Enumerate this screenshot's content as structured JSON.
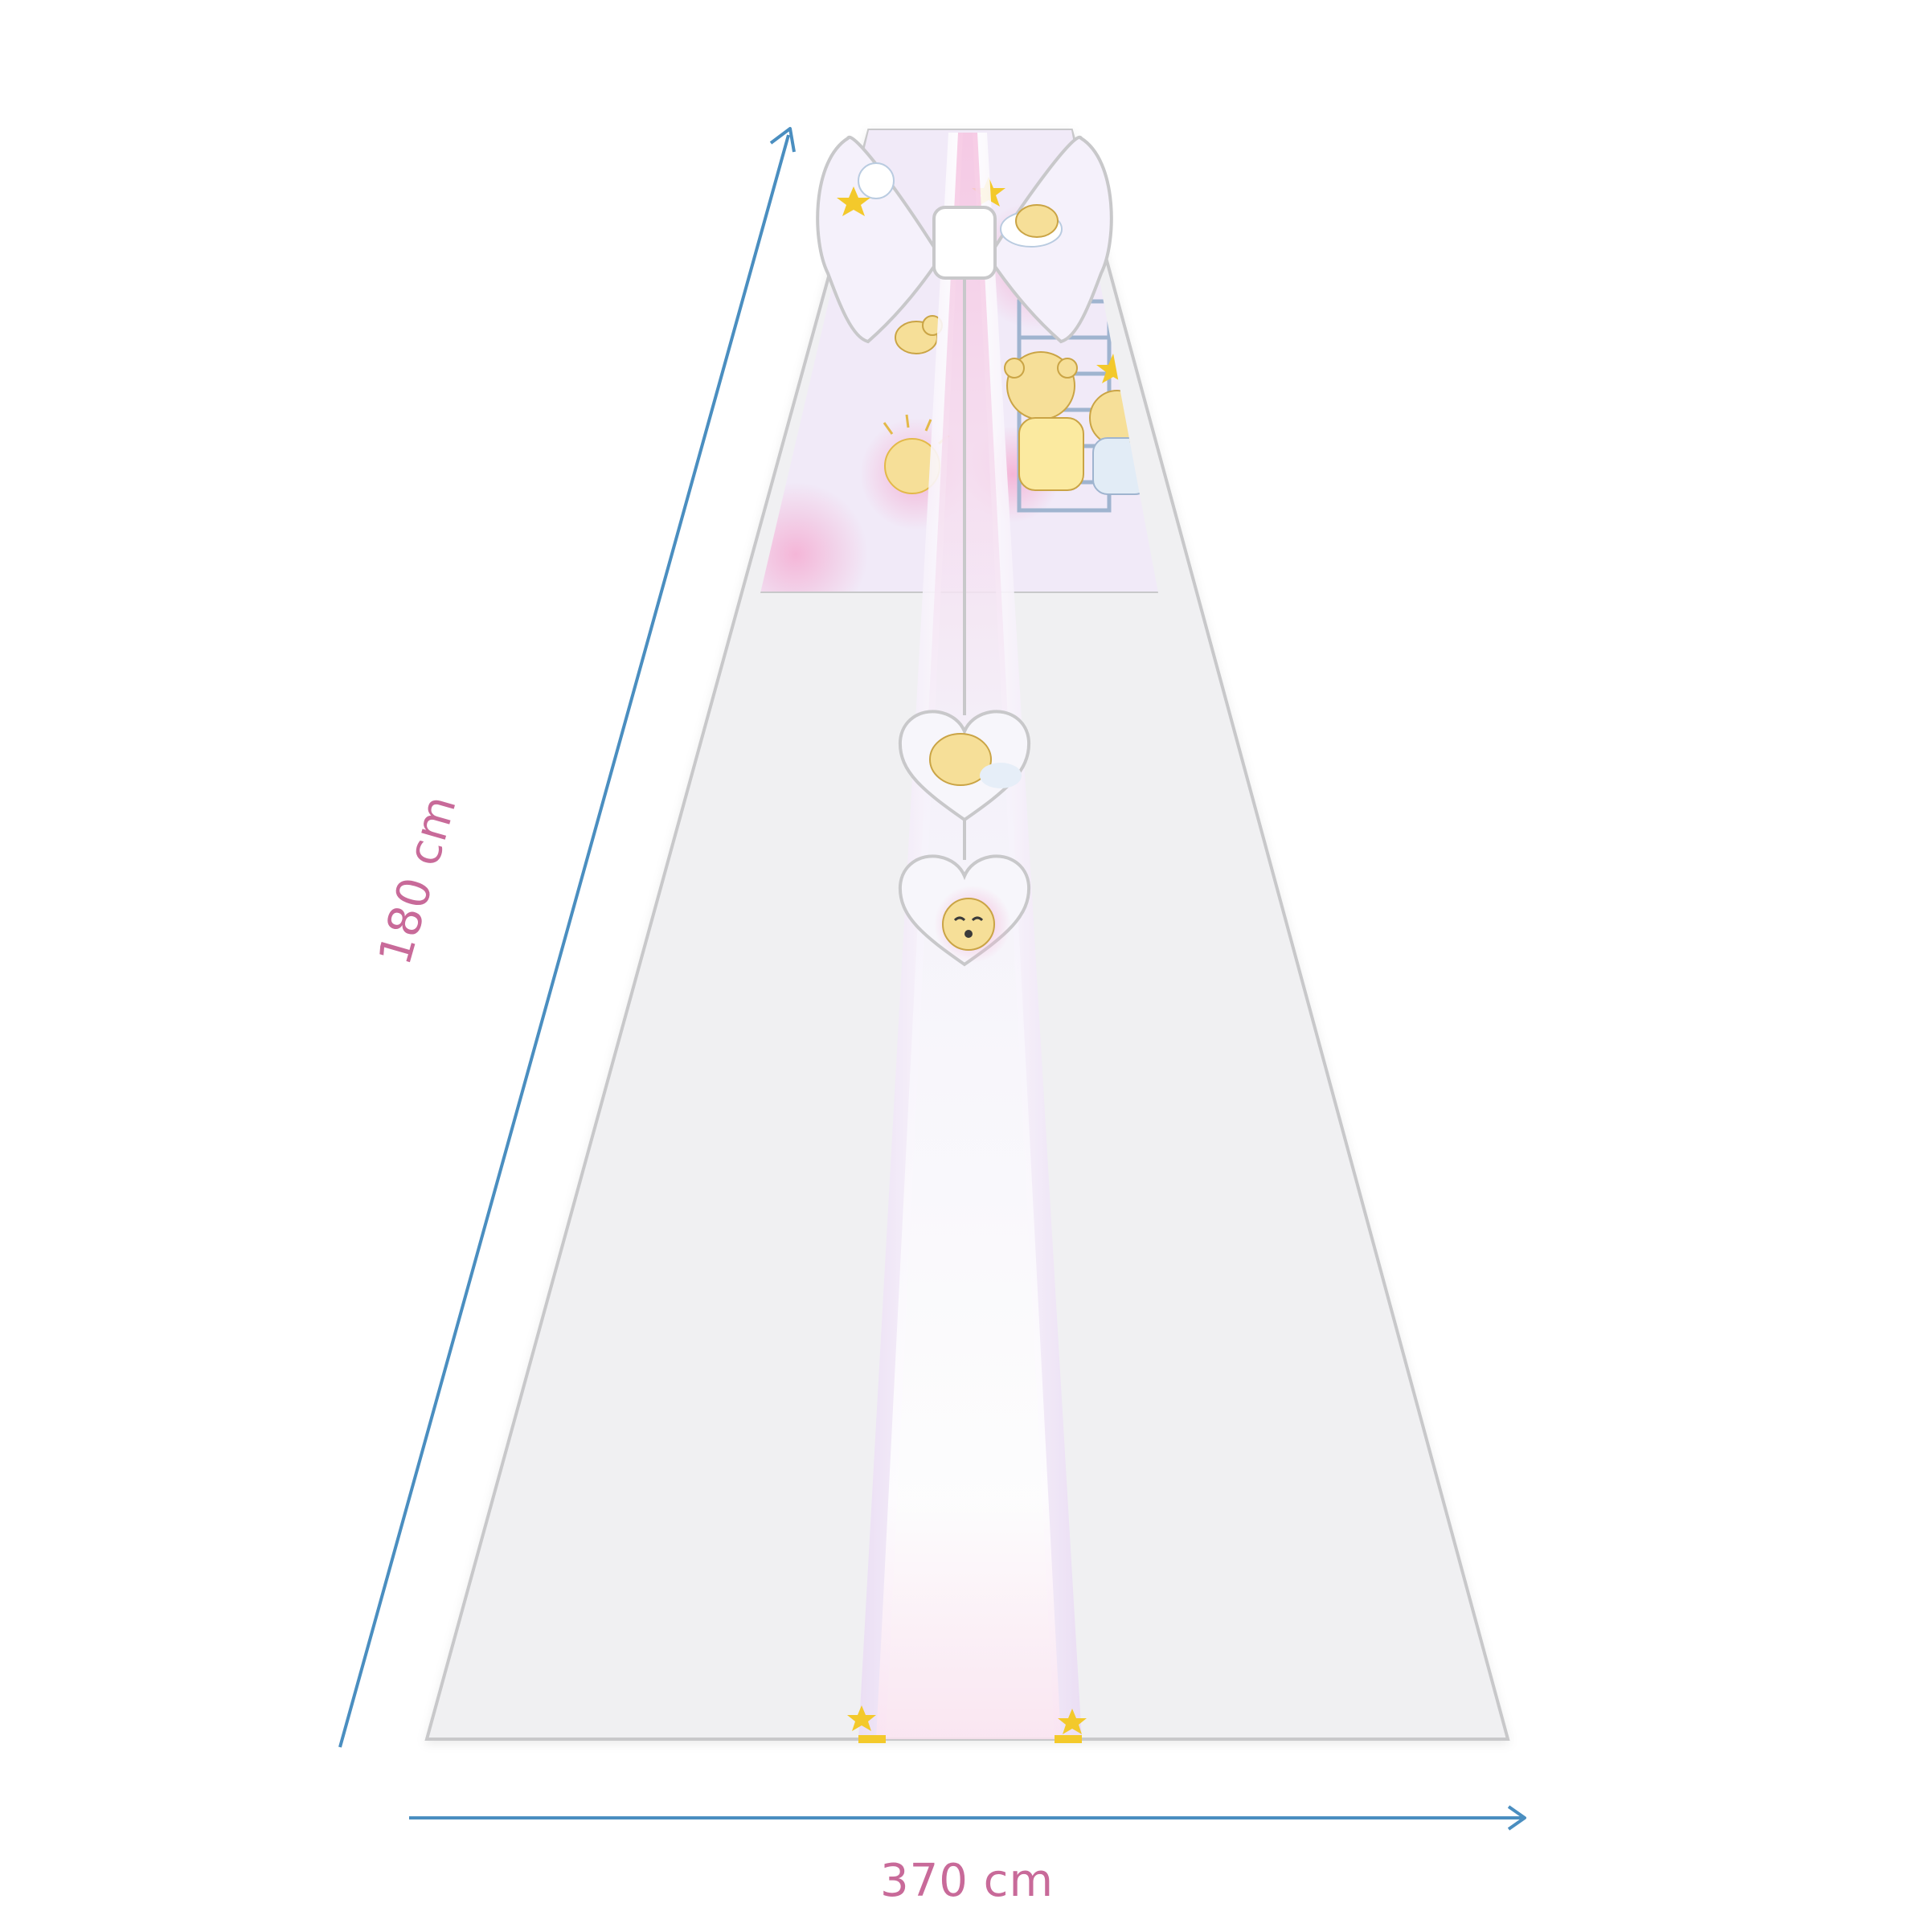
{
  "dimensions": {
    "height_label": "180 cm",
    "width_label": "370 cm"
  },
  "colors": {
    "arrow": "#4a8ec0",
    "label": "#c86a99",
    "canopy_fill": "#f0f0f2",
    "outline": "#c8c8ca",
    "print_background": "#f1eaf8",
    "print_pink": "#f6c8e2",
    "bear_yellow": "#f6df98",
    "star_yellow": "#f3c92b"
  }
}
